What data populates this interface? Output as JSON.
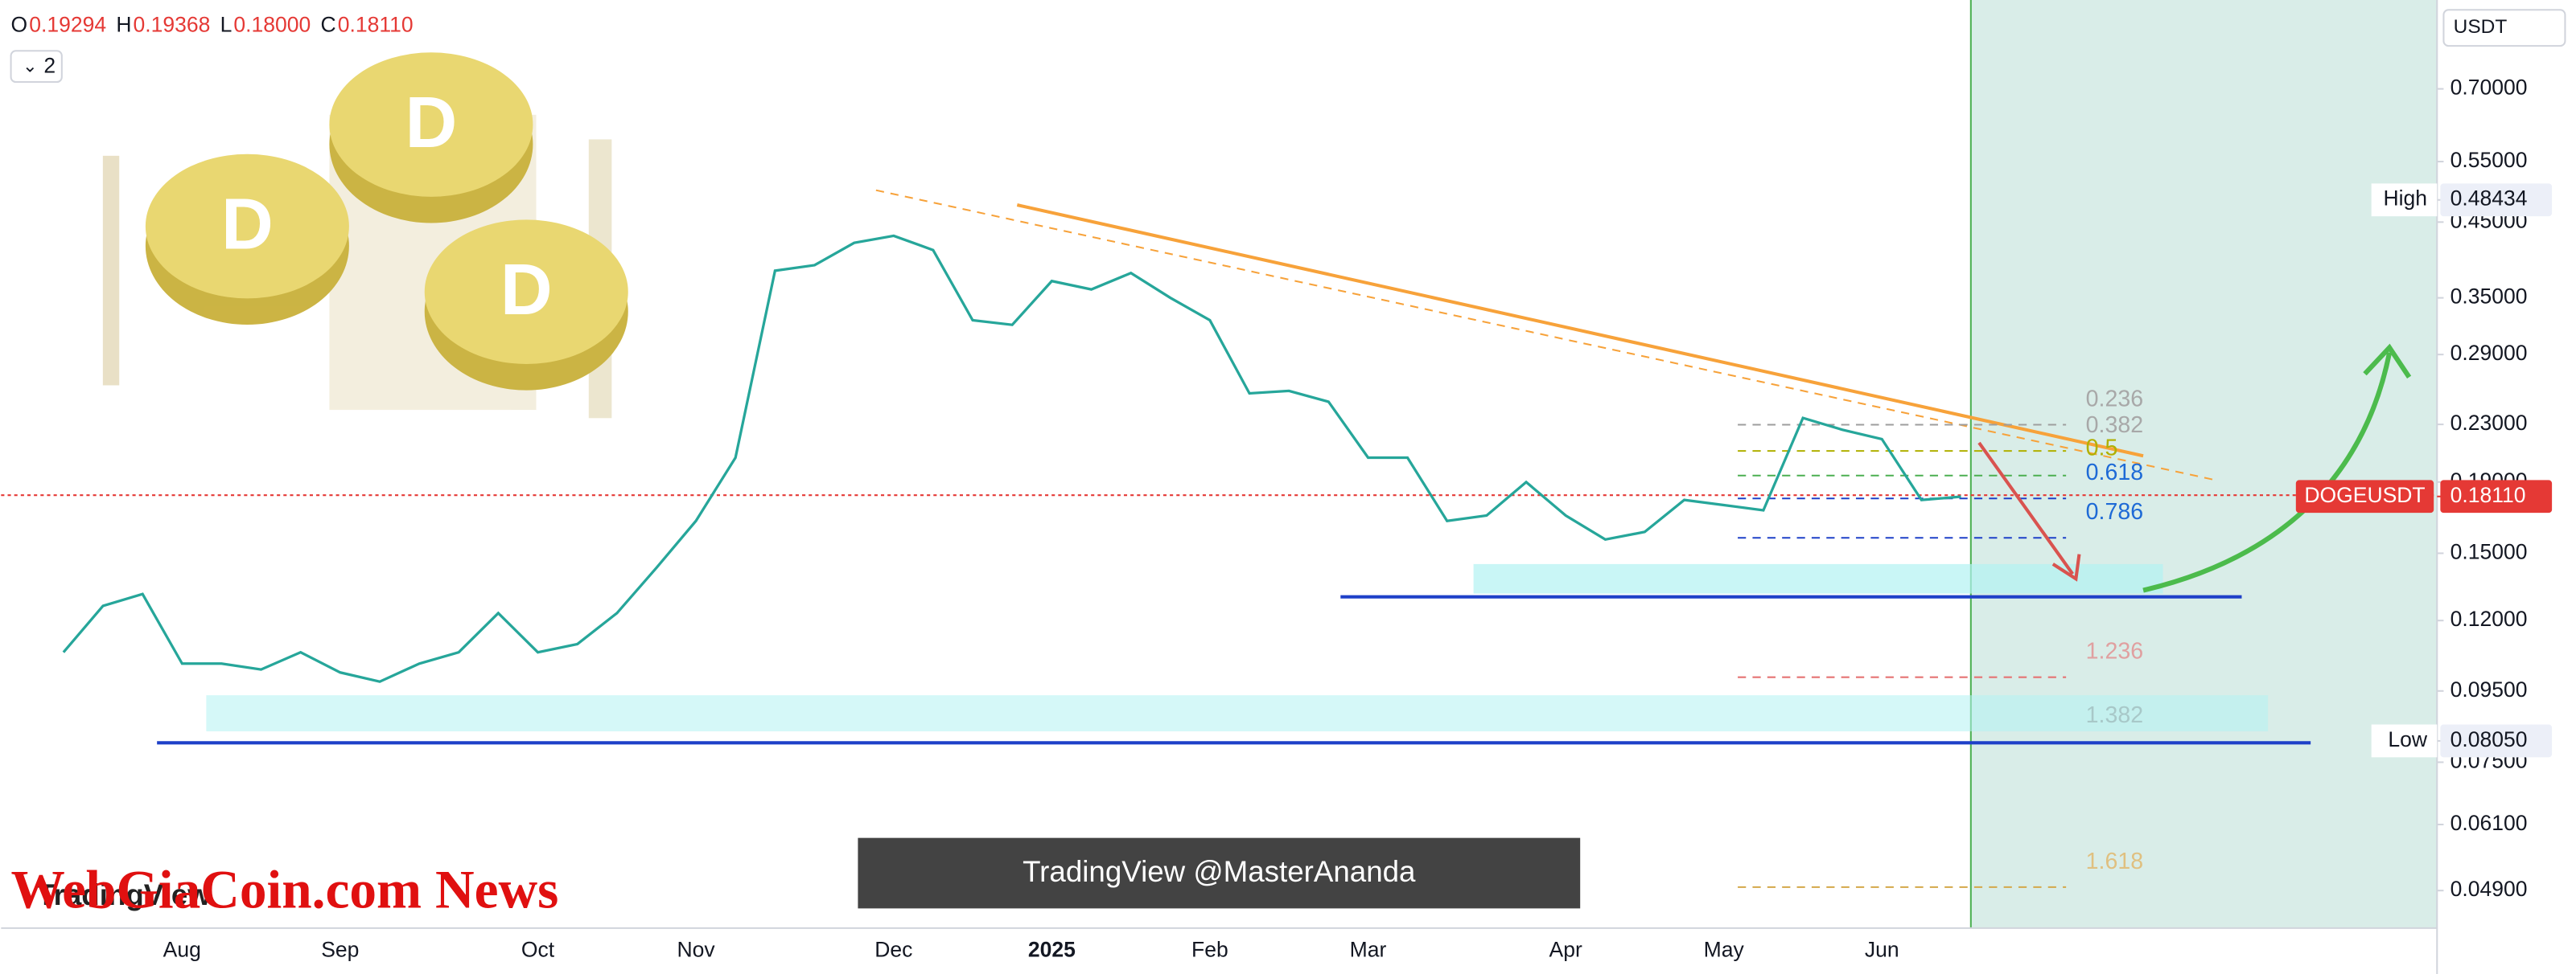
{
  "header": {
    "ohlc": [
      {
        "label": "O",
        "value": "0.19294"
      },
      {
        "label": "H",
        "value": "0.19368"
      },
      {
        "label": "L",
        "value": "0.18000"
      },
      {
        "label": "C",
        "value": "0.18110"
      }
    ],
    "indicator_count": "2"
  },
  "currency": "USDT",
  "chart_data": {
    "type": "line",
    "log_scale": true,
    "color": "#26a69a",
    "categories": [
      null,
      null,
      null,
      "Aug",
      null,
      null,
      null,
      "Sep",
      null,
      null,
      null,
      null,
      "Oct",
      null,
      null,
      null,
      "Nov",
      null,
      null,
      null,
      null,
      "Dec",
      null,
      null,
      null,
      "2025",
      null,
      null,
      null,
      "Feb",
      null,
      null,
      null,
      "Mar",
      null,
      null,
      null,
      null,
      "Apr",
      null,
      null,
      null,
      "May",
      null,
      null,
      null,
      "Jun",
      null,
      null
    ],
    "values": [
      0.108,
      0.126,
      0.131,
      0.104,
      0.104,
      0.102,
      0.108,
      0.101,
      0.098,
      0.104,
      0.108,
      0.123,
      0.108,
      0.111,
      0.123,
      0.143,
      0.167,
      0.206,
      0.383,
      0.39,
      0.42,
      0.43,
      0.41,
      0.325,
      0.32,
      0.37,
      0.36,
      0.38,
      0.35,
      0.325,
      0.255,
      0.257,
      0.248,
      0.206,
      0.206,
      0.167,
      0.17,
      0.19,
      0.17,
      0.157,
      0.161,
      0.179,
      0.176,
      0.173,
      0.235,
      0.226,
      0.219,
      0.179,
      0.181
    ],
    "ylim": [
      0.0435,
      0.94
    ],
    "yticks": [
      {
        "value": 0.7,
        "label": "0.70000"
      },
      {
        "value": 0.55,
        "label": "0.55000"
      },
      {
        "value": 0.45,
        "label": "0.45000"
      },
      {
        "value": 0.35,
        "label": "0.35000"
      },
      {
        "value": 0.29,
        "label": "0.29000"
      },
      {
        "value": 0.23,
        "label": "0.23000"
      },
      {
        "value": 0.19,
        "label": "0.19000"
      },
      {
        "value": 0.15,
        "label": "0.15000"
      },
      {
        "value": 0.12,
        "label": "0.12000"
      },
      {
        "value": 0.095,
        "label": "0.09500"
      },
      {
        "value": 0.075,
        "label": "0.07500"
      },
      {
        "value": 0.061,
        "label": "0.06100"
      },
      {
        "value": 0.049,
        "label": "0.04900"
      }
    ],
    "markers": [
      {
        "name": "High",
        "value": 0.48434,
        "label": "0.48434"
      },
      {
        "name": "Low",
        "value": 0.0805,
        "label": "0.08050"
      },
      {
        "name": "DOGEUSDT",
        "value": 0.1811,
        "label": "0.18110"
      }
    ],
    "fib_levels": [
      "0.236",
      "0.382",
      "0.5",
      "0.618",
      "0.786",
      "1.236",
      "1.382",
      "1.618"
    ]
  },
  "watermarks": {
    "author": "TradingView @MasterAnanda",
    "site": "WebGiaCoin.com News",
    "brand": "TradingView"
  }
}
